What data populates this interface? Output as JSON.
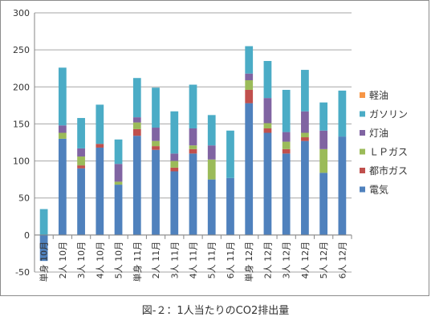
{
  "caption": "図-２：1人当たりのCO2排出量",
  "chart_data": {
    "type": "bar",
    "stacked": true,
    "categories": [
      "単身 10月",
      "2人 10月",
      "3人 10月",
      "4人 10月",
      "5人 10月",
      "単身 11月",
      "2人 11月",
      "3人 11月",
      "4人 11月",
      "5人 11月",
      "6人 11月",
      "単身 12月",
      "2人 12月",
      "3人 12月",
      "4人 12月",
      "5人 12月",
      "6人 12月"
    ],
    "ylim": [
      -50,
      300
    ],
    "yticks": [
      -50,
      0,
      50,
      100,
      150,
      200,
      250,
      300
    ],
    "grid": "horizontal",
    "legend_position": "right",
    "series": [
      {
        "name": "電気",
        "color": "#4f81bd",
        "values": [
          -35,
          130,
          90,
          118,
          68,
          134,
          115,
          86,
          110,
          75,
          77,
          178,
          138,
          110,
          127,
          84,
          133
        ]
      },
      {
        "name": "都市ガス",
        "color": "#c0504d",
        "values": [
          0,
          0,
          4,
          5,
          0,
          9,
          5,
          5,
          6,
          0,
          0,
          18,
          6,
          6,
          5,
          0,
          0
        ]
      },
      {
        "name": "ＬＰガス",
        "color": "#9bbb59",
        "values": [
          0,
          8,
          12,
          0,
          4,
          9,
          7,
          9,
          5,
          27,
          0,
          13,
          7,
          10,
          6,
          32,
          0
        ]
      },
      {
        "name": "灯油",
        "color": "#8064a2",
        "values": [
          0,
          10,
          11,
          0,
          24,
          7,
          18,
          10,
          23,
          19,
          0,
          9,
          34,
          13,
          29,
          25,
          0
        ]
      },
      {
        "name": "ガソリン",
        "color": "#4bacc6",
        "values": [
          35,
          78,
          41,
          53,
          33,
          53,
          54,
          57,
          59,
          41,
          64,
          37,
          50,
          57,
          56,
          38,
          62
        ]
      },
      {
        "name": "軽油",
        "color": "#f79646",
        "values": [
          0,
          0,
          0,
          0,
          0,
          0,
          0,
          0,
          0,
          0,
          0,
          0,
          0,
          0,
          0,
          0,
          0
        ]
      }
    ]
  }
}
